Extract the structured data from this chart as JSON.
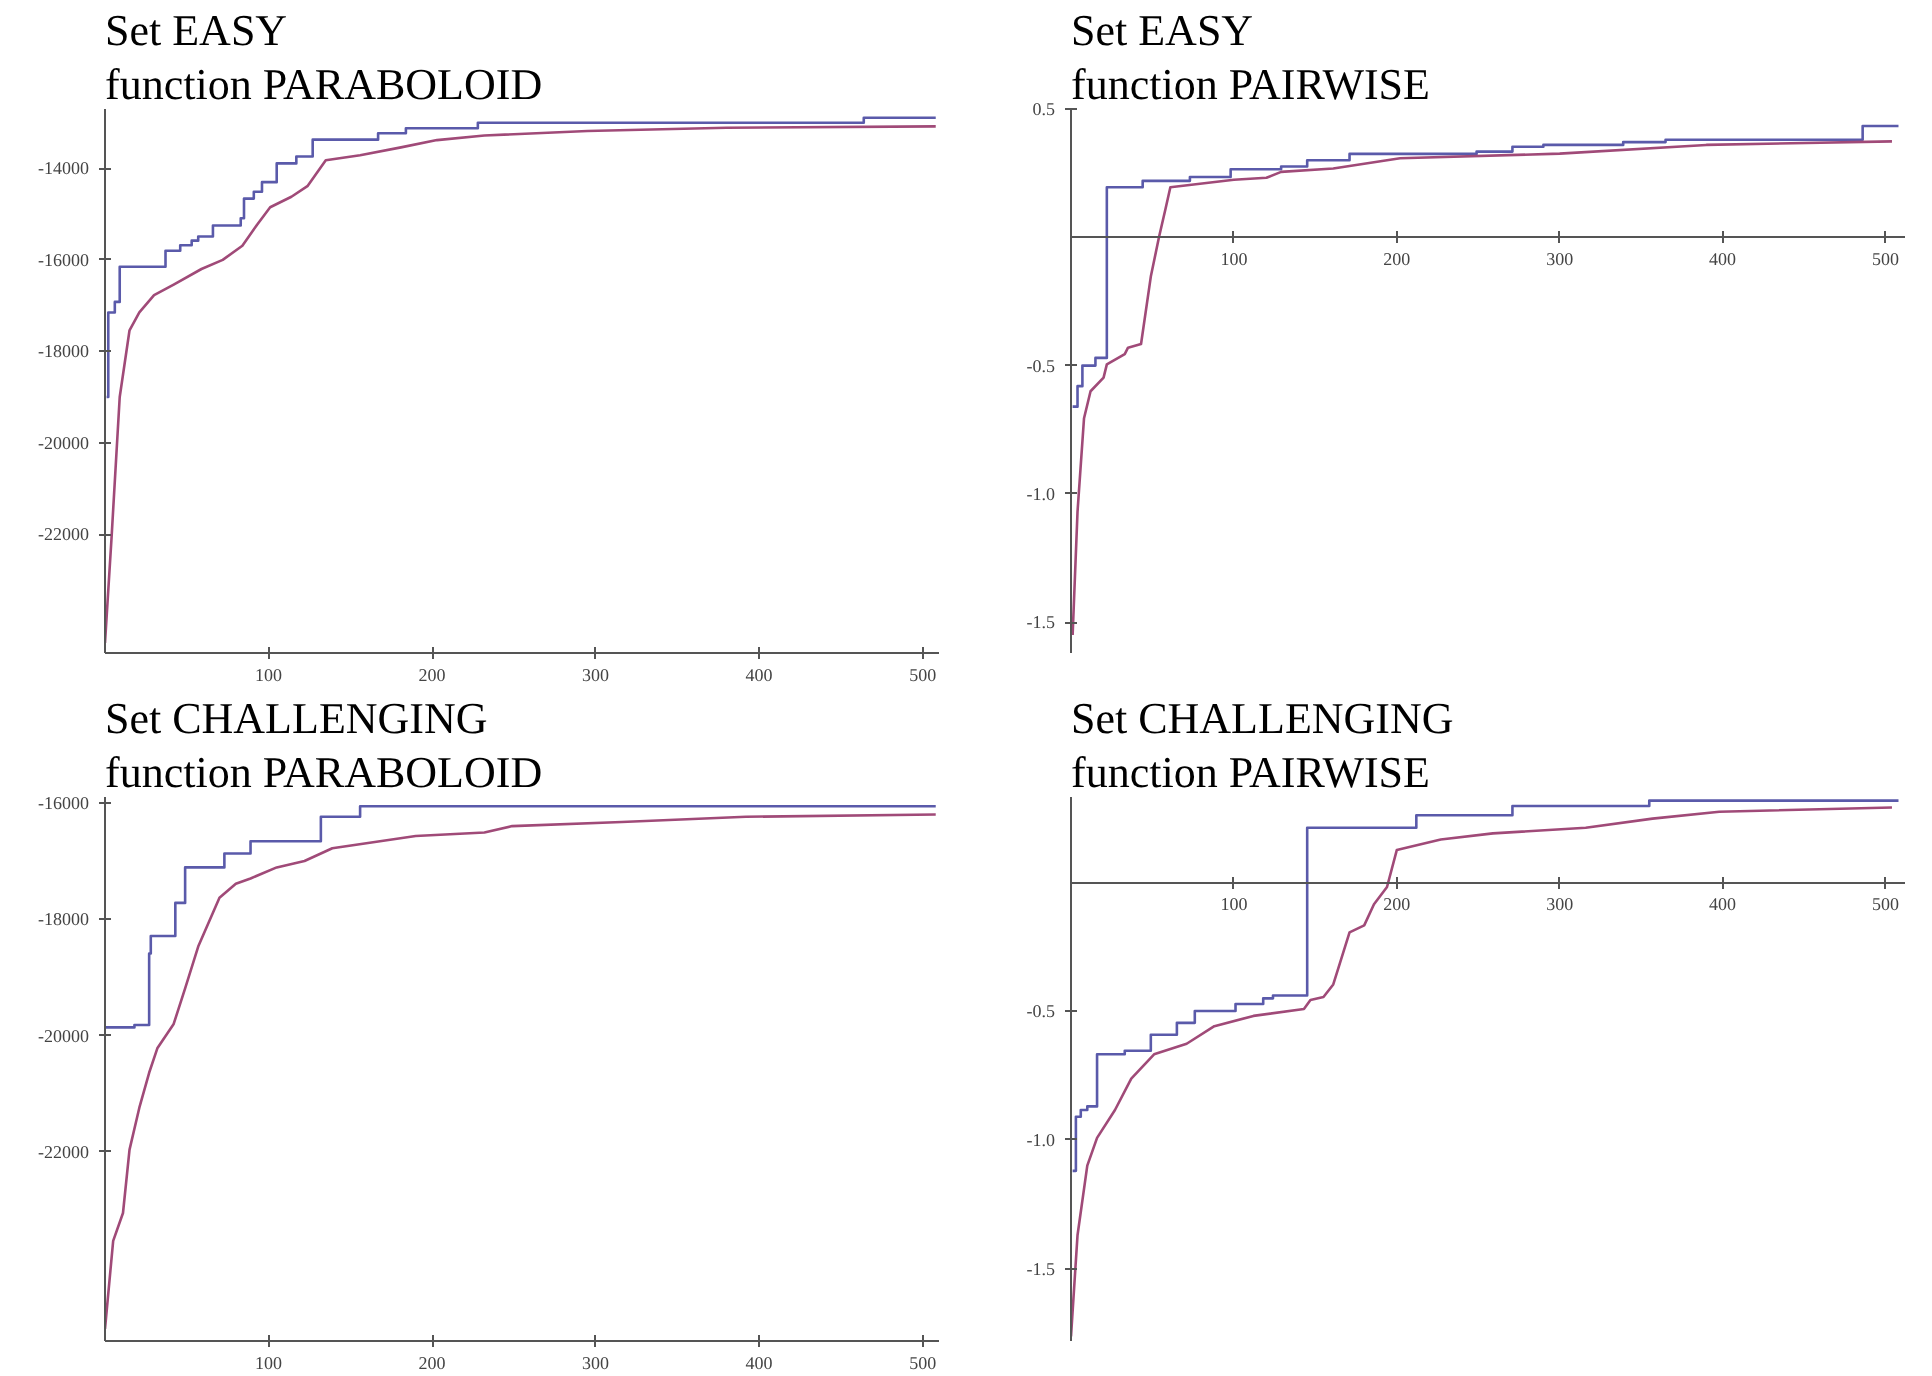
{
  "chart_data": [
    {
      "type": "line",
      "title": "Set EASY",
      "subtitle": "function PARABOLOID",
      "xlim": [
        0,
        510
      ],
      "ylim": [
        -24600,
        -12700
      ],
      "xticks": [
        100,
        200,
        300,
        400,
        500
      ],
      "yticks": [
        -22000,
        -20000,
        -18000,
        -16000,
        -14000
      ],
      "grid": false,
      "series": [
        {
          "type": "step",
          "color": "#5a5aaa",
          "x": [
            1,
            2,
            6,
            9,
            37,
            46,
            53,
            57,
            66,
            83,
            85,
            91,
            96,
            105,
            117,
            127,
            167,
            184,
            228,
            464,
            508
          ],
          "values": [
            -19000,
            -17150,
            -16920,
            -16150,
            -15800,
            -15680,
            -15580,
            -15490,
            -15250,
            -15090,
            -14660,
            -14510,
            -14300,
            -13890,
            -13740,
            -13370,
            -13230,
            -13120,
            -13000,
            -12890,
            -12890
          ]
        },
        {
          "color": "#a04a78",
          "x": [
            0,
            4,
            9,
            15,
            21,
            30,
            42,
            59,
            72,
            84,
            93,
            101,
            114,
            124,
            135,
            156,
            181,
            203,
            232,
            295,
            380,
            508
          ],
          "values": [
            -24380,
            -22080,
            -19000,
            -17540,
            -17150,
            -16770,
            -16540,
            -16200,
            -16000,
            -15690,
            -15230,
            -14850,
            -14620,
            -14380,
            -13820,
            -13710,
            -13540,
            -13380,
            -13280,
            -13180,
            -13110,
            -13080
          ]
        }
      ]
    },
    {
      "type": "line",
      "title": "Set EASY",
      "subtitle": "function PAIRWISE",
      "xlim": [
        0,
        512
      ],
      "ylim": [
        -1.62,
        0.5
      ],
      "xticks": [
        100,
        200,
        300,
        400,
        500
      ],
      "yticks": [
        {
          "value": -1.5,
          "label": "-1.5"
        },
        {
          "value": -1,
          "label": "-1.0"
        },
        {
          "value": -0.5,
          "label": "-0.5"
        },
        0.5
      ],
      "grid": false,
      "series": [
        {
          "type": "step",
          "color": "#5a5aaa",
          "x": [
            1,
            4,
            7,
            15,
            22,
            44,
            73,
            98,
            129,
            145,
            171,
            249,
            271,
            290,
            339,
            365,
            486,
            508
          ],
          "values": [
            -0.66,
            -0.58,
            -0.5,
            -0.47,
            0.195,
            0.22,
            0.235,
            0.265,
            0.276,
            0.3,
            0.325,
            0.334,
            0.353,
            0.36,
            0.371,
            0.38,
            0.434,
            0.434
          ]
        },
        {
          "color": "#a04a78",
          "x": [
            1,
            4,
            8,
            12,
            20,
            22,
            33,
            35,
            43,
            49,
            54,
            58,
            61,
            100,
            120,
            129,
            161,
            202,
            300,
            390,
            504
          ],
          "values": [
            -1.55,
            -1.07,
            -0.705,
            -0.6,
            -0.547,
            -0.495,
            -0.455,
            -0.43,
            -0.416,
            -0.153,
            0,
            0.11,
            0.195,
            0.224,
            0.232,
            0.255,
            0.268,
            0.308,
            0.326,
            0.36,
            0.374
          ]
        }
      ]
    },
    {
      "type": "line",
      "title": "Set CHALLENGING",
      "subtitle": "function PARABOLOID",
      "xlim": [
        0,
        510
      ],
      "ylim": [
        -25250,
        -15900
      ],
      "xticks": [
        100,
        200,
        300,
        400,
        500
      ],
      "yticks": [
        -22000,
        -20000,
        -18000,
        -16000
      ],
      "grid": false,
      "series": [
        {
          "type": "step",
          "color": "#5a5aaa",
          "x": [
            0,
            18,
            27,
            28,
            43,
            49,
            73,
            89,
            132,
            156,
            508
          ],
          "values": [
            -19860,
            -19820,
            -18590,
            -18290,
            -17720,
            -17110,
            -16870,
            -16660,
            -16240,
            -16060,
            -16060
          ]
        },
        {
          "color": "#a04a78",
          "x": [
            0,
            5,
            11,
            15,
            21,
            27,
            32,
            42,
            49,
            57,
            70,
            80,
            89,
            105,
            122,
            139,
            190,
            232,
            249,
            316,
            392,
            508
          ],
          "values": [
            -25040,
            -23530,
            -23050,
            -21960,
            -21240,
            -20640,
            -20220,
            -19800,
            -19190,
            -18470,
            -17630,
            -17390,
            -17300,
            -17110,
            -17000,
            -16780,
            -16570,
            -16510,
            -16400,
            -16330,
            -16240,
            -16200
          ]
        }
      ]
    },
    {
      "type": "line",
      "title": "Set CHALLENGING",
      "subtitle": "function PAIRWISE",
      "xlim": [
        0,
        512
      ],
      "ylim": [
        -1.78,
        0.33
      ],
      "xticks": [
        100,
        200,
        300,
        400,
        500
      ],
      "yticks": [
        {
          "value": -1.5,
          "label": "-1.5"
        },
        {
          "value": -1,
          "label": "-1.0"
        },
        {
          "value": -0.5,
          "label": "-0.5"
        }
      ],
      "grid": false,
      "series": [
        {
          "type": "step",
          "color": "#5a5aaa",
          "x": [
            1,
            3,
            6,
            10,
            16,
            33,
            49,
            65,
            76,
            101,
            118,
            124,
            145,
            212,
            271,
            355,
            508
          ],
          "values": [
            -1.12,
            -0.91,
            -0.884,
            -0.87,
            -0.668,
            -0.654,
            -0.592,
            -0.546,
            -0.5,
            -0.473,
            -0.451,
            -0.44,
            0.211,
            0.259,
            0.295,
            0.316,
            0.316
          ]
        },
        {
          "color": "#a04a78",
          "x": [
            0,
            4,
            10,
            16,
            27,
            37,
            51,
            71,
            88,
            112,
            143,
            147,
            155,
            161,
            165,
            171,
            180,
            186,
            194,
            200,
            227,
            259,
            316,
            357,
            398,
            504
          ],
          "values": [
            -1.762,
            -1.37,
            -1.1,
            -0.992,
            -0.884,
            -0.762,
            -0.668,
            -0.627,
            -0.559,
            -0.519,
            -0.492,
            -0.457,
            -0.446,
            -0.397,
            -0.316,
            -0.195,
            -0.168,
            -0.086,
            -0.019,
            0.124,
            0.165,
            0.189,
            0.211,
            0.246,
            0.273,
            0.289
          ]
        }
      ]
    }
  ]
}
